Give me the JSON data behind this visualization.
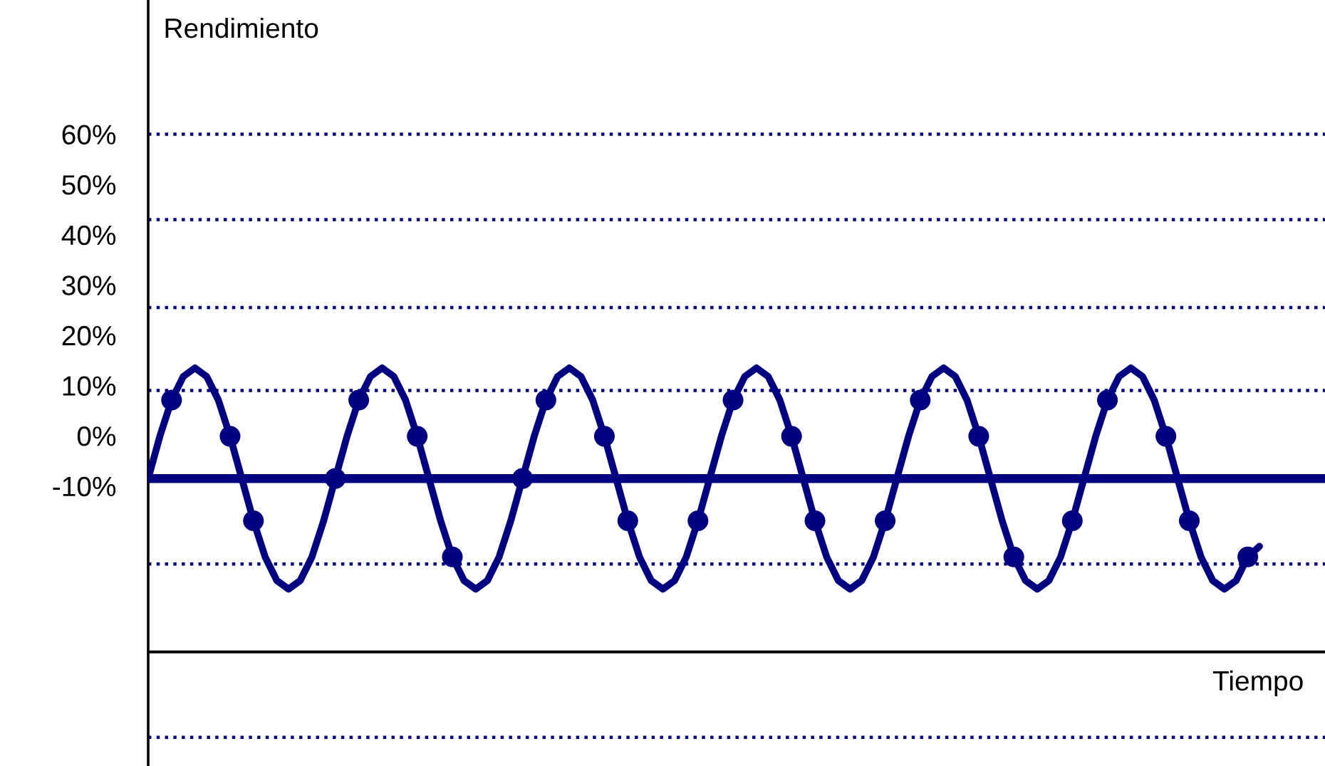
{
  "chart_data": {
    "type": "line",
    "xlabel": "Tiempo",
    "ylabel": "Rendimiento",
    "categories": [
      null,
      null,
      null,
      null,
      null,
      null,
      null,
      null,
      null,
      null,
      null,
      null,
      null,
      null,
      null,
      null,
      null,
      null,
      null,
      null,
      null,
      null,
      null,
      null,
      null,
      null,
      null,
      null,
      null,
      null,
      null,
      null,
      null,
      null,
      null,
      null,
      null,
      null,
      null,
      null,
      null,
      null,
      null,
      null,
      null,
      null,
      null,
      null,
      null,
      null,
      null,
      null,
      null,
      null,
      null,
      null,
      null,
      null,
      null,
      null,
      null,
      null,
      null,
      null,
      null,
      null,
      null,
      null,
      null,
      null,
      null,
      null,
      null,
      null,
      null,
      null,
      null,
      null,
      null,
      null,
      null,
      null,
      null,
      null,
      null,
      null,
      null,
      null,
      null,
      null,
      null,
      null,
      null,
      null,
      null,
      null
    ],
    "series": [
      {
        "color": "#000080",
        "marker": "none",
        "line_style": "solid",
        "values": [
          -8.5,
          -0.1,
          7.1,
          11.8,
          13.5,
          11.8,
          7.1,
          -0.1,
          -8.5,
          -16.9,
          -24.1,
          -28.8,
          -30.5,
          -28.8,
          -24.1,
          -16.9,
          -8.5,
          -0.1,
          7.1,
          11.8,
          13.5,
          11.8,
          7.1,
          -0.1,
          -8.5,
          -16.9,
          -24.1,
          -28.8,
          -30.5,
          -28.8,
          -24.1,
          -16.9,
          -8.5,
          -0.1,
          7.1,
          11.8,
          13.5,
          11.8,
          7.1,
          -0.1,
          -8.5,
          -16.9,
          -24.1,
          -28.8,
          -30.5,
          -28.8,
          -24.1,
          -16.9,
          -8.5,
          -0.1,
          7.1,
          11.8,
          13.5,
          11.8,
          7.1,
          -0.1,
          -8.5,
          -16.9,
          -24.1,
          -28.8,
          -30.5,
          -28.8,
          -24.1,
          -16.9,
          -8.5,
          -0.1,
          7.1,
          11.8,
          13.5,
          11.8,
          7.1,
          -0.1,
          -8.5,
          -16.9,
          -24.1,
          -28.8,
          -30.5,
          -28.8,
          -24.1,
          -16.9,
          -8.5,
          -0.1,
          7.1,
          11.8,
          13.5,
          11.8,
          7.1,
          -0.1,
          -8.5,
          -16.9,
          -24.1,
          -28.8,
          -30.5,
          -28.8,
          -24.1,
          -22
        ]
      },
      {
        "type": "scatter",
        "color": "#000080",
        "marker": "circle",
        "values": [
          null,
          null,
          7.1,
          null,
          null,
          null,
          null,
          -0.1,
          null,
          -16.9,
          null,
          null,
          null,
          null,
          null,
          null,
          -8.5,
          null,
          7.1,
          null,
          null,
          null,
          null,
          -0.1,
          null,
          null,
          -24.1,
          null,
          null,
          null,
          null,
          null,
          -8.5,
          null,
          7.1,
          null,
          null,
          null,
          null,
          -0.1,
          null,
          -16.9,
          null,
          null,
          null,
          null,
          null,
          -16.9,
          null,
          null,
          7.1,
          null,
          null,
          null,
          null,
          -0.1,
          null,
          -16.9,
          null,
          null,
          null,
          null,
          null,
          -16.9,
          null,
          null,
          7.1,
          null,
          null,
          null,
          null,
          -0.1,
          null,
          null,
          -24.1,
          null,
          null,
          null,
          null,
          -16.9,
          null,
          null,
          7.1,
          null,
          null,
          null,
          null,
          -0.1,
          null,
          -16.9,
          null,
          null,
          null,
          null,
          -24.1,
          null
        ]
      }
    ],
    "ylim": [
      -65.7,
      86.7
    ],
    "yticks": [
      {
        "value": 60,
        "label": "60%"
      },
      {
        "value": 50,
        "label": "50%"
      },
      {
        "value": 40,
        "label": "40%"
      },
      {
        "value": 30,
        "label": "30%"
      },
      {
        "value": 20,
        "label": "20%"
      },
      {
        "value": 10,
        "label": "10%"
      },
      {
        "value": 0,
        "label": "0%"
      },
      {
        "value": -10,
        "label": "-10%"
      }
    ],
    "ref_lines": [
      {
        "axis": "y",
        "value": 60,
        "color": "#000080",
        "line_style": "dotted"
      },
      {
        "axis": "y",
        "value": 43,
        "color": "#000080",
        "line_style": "dotted"
      },
      {
        "axis": "y",
        "value": 25.5,
        "color": "#000080",
        "line_style": "dotted"
      },
      {
        "axis": "y",
        "value": 9,
        "color": "#000080",
        "line_style": "dotted"
      },
      {
        "axis": "y",
        "value": -8.5,
        "color": "#000080",
        "line_style": "solid"
      },
      {
        "axis": "y",
        "value": -25.5,
        "color": "#000080",
        "line_style": "dotted"
      },
      {
        "axis": "y",
        "value": -43,
        "color": "#000000",
        "line_style": "solid"
      },
      {
        "axis": "y",
        "value": -60,
        "color": "#000080",
        "line_style": "dotted"
      }
    ],
    "grid": false,
    "tick_labels": "y"
  }
}
